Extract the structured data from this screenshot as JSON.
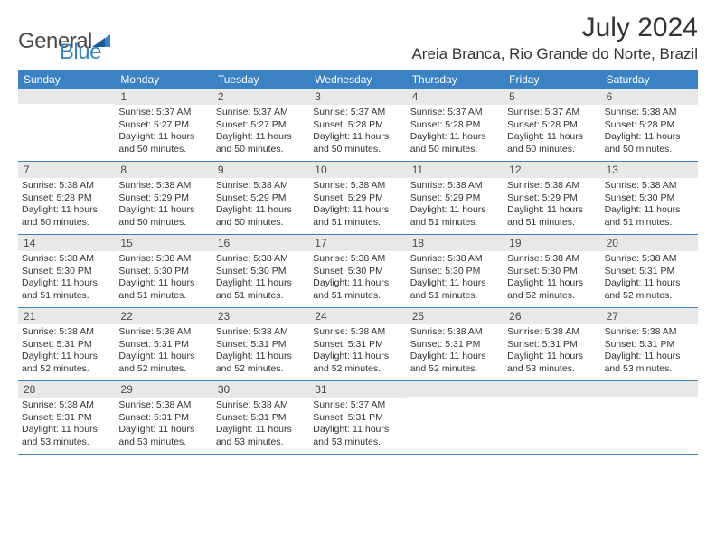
{
  "logo": {
    "word1": "General",
    "word2": "Blue"
  },
  "title": "July 2024",
  "location": "Areia Branca, Rio Grande do Norte, Brazil",
  "day_names": [
    "Sunday",
    "Monday",
    "Tuesday",
    "Wednesday",
    "Thursday",
    "Friday",
    "Saturday"
  ],
  "colors": {
    "header_bg": "#3b82c4",
    "header_text": "#ffffff",
    "num_bg": "#e8e8e8",
    "text": "#333333",
    "logo_gray": "#4a4a4a",
    "logo_blue": "#3b82c4"
  },
  "typography": {
    "title_fontsize": 30,
    "location_fontsize": 17,
    "dayname_fontsize": 12,
    "daynum_fontsize": 12,
    "body_fontsize": 10.5
  },
  "weeks": [
    [
      {
        "num": "",
        "sunrise": "",
        "sunset": "",
        "daylight": ""
      },
      {
        "num": "1",
        "sunrise": "Sunrise: 5:37 AM",
        "sunset": "Sunset: 5:27 PM",
        "daylight": "Daylight: 11 hours and 50 minutes."
      },
      {
        "num": "2",
        "sunrise": "Sunrise: 5:37 AM",
        "sunset": "Sunset: 5:27 PM",
        "daylight": "Daylight: 11 hours and 50 minutes."
      },
      {
        "num": "3",
        "sunrise": "Sunrise: 5:37 AM",
        "sunset": "Sunset: 5:28 PM",
        "daylight": "Daylight: 11 hours and 50 minutes."
      },
      {
        "num": "4",
        "sunrise": "Sunrise: 5:37 AM",
        "sunset": "Sunset: 5:28 PM",
        "daylight": "Daylight: 11 hours and 50 minutes."
      },
      {
        "num": "5",
        "sunrise": "Sunrise: 5:37 AM",
        "sunset": "Sunset: 5:28 PM",
        "daylight": "Daylight: 11 hours and 50 minutes."
      },
      {
        "num": "6",
        "sunrise": "Sunrise: 5:38 AM",
        "sunset": "Sunset: 5:28 PM",
        "daylight": "Daylight: 11 hours and 50 minutes."
      }
    ],
    [
      {
        "num": "7",
        "sunrise": "Sunrise: 5:38 AM",
        "sunset": "Sunset: 5:28 PM",
        "daylight": "Daylight: 11 hours and 50 minutes."
      },
      {
        "num": "8",
        "sunrise": "Sunrise: 5:38 AM",
        "sunset": "Sunset: 5:29 PM",
        "daylight": "Daylight: 11 hours and 50 minutes."
      },
      {
        "num": "9",
        "sunrise": "Sunrise: 5:38 AM",
        "sunset": "Sunset: 5:29 PM",
        "daylight": "Daylight: 11 hours and 50 minutes."
      },
      {
        "num": "10",
        "sunrise": "Sunrise: 5:38 AM",
        "sunset": "Sunset: 5:29 PM",
        "daylight": "Daylight: 11 hours and 51 minutes."
      },
      {
        "num": "11",
        "sunrise": "Sunrise: 5:38 AM",
        "sunset": "Sunset: 5:29 PM",
        "daylight": "Daylight: 11 hours and 51 minutes."
      },
      {
        "num": "12",
        "sunrise": "Sunrise: 5:38 AM",
        "sunset": "Sunset: 5:29 PM",
        "daylight": "Daylight: 11 hours and 51 minutes."
      },
      {
        "num": "13",
        "sunrise": "Sunrise: 5:38 AM",
        "sunset": "Sunset: 5:30 PM",
        "daylight": "Daylight: 11 hours and 51 minutes."
      }
    ],
    [
      {
        "num": "14",
        "sunrise": "Sunrise: 5:38 AM",
        "sunset": "Sunset: 5:30 PM",
        "daylight": "Daylight: 11 hours and 51 minutes."
      },
      {
        "num": "15",
        "sunrise": "Sunrise: 5:38 AM",
        "sunset": "Sunset: 5:30 PM",
        "daylight": "Daylight: 11 hours and 51 minutes."
      },
      {
        "num": "16",
        "sunrise": "Sunrise: 5:38 AM",
        "sunset": "Sunset: 5:30 PM",
        "daylight": "Daylight: 11 hours and 51 minutes."
      },
      {
        "num": "17",
        "sunrise": "Sunrise: 5:38 AM",
        "sunset": "Sunset: 5:30 PM",
        "daylight": "Daylight: 11 hours and 51 minutes."
      },
      {
        "num": "18",
        "sunrise": "Sunrise: 5:38 AM",
        "sunset": "Sunset: 5:30 PM",
        "daylight": "Daylight: 11 hours and 51 minutes."
      },
      {
        "num": "19",
        "sunrise": "Sunrise: 5:38 AM",
        "sunset": "Sunset: 5:30 PM",
        "daylight": "Daylight: 11 hours and 52 minutes."
      },
      {
        "num": "20",
        "sunrise": "Sunrise: 5:38 AM",
        "sunset": "Sunset: 5:31 PM",
        "daylight": "Daylight: 11 hours and 52 minutes."
      }
    ],
    [
      {
        "num": "21",
        "sunrise": "Sunrise: 5:38 AM",
        "sunset": "Sunset: 5:31 PM",
        "daylight": "Daylight: 11 hours and 52 minutes."
      },
      {
        "num": "22",
        "sunrise": "Sunrise: 5:38 AM",
        "sunset": "Sunset: 5:31 PM",
        "daylight": "Daylight: 11 hours and 52 minutes."
      },
      {
        "num": "23",
        "sunrise": "Sunrise: 5:38 AM",
        "sunset": "Sunset: 5:31 PM",
        "daylight": "Daylight: 11 hours and 52 minutes."
      },
      {
        "num": "24",
        "sunrise": "Sunrise: 5:38 AM",
        "sunset": "Sunset: 5:31 PM",
        "daylight": "Daylight: 11 hours and 52 minutes."
      },
      {
        "num": "25",
        "sunrise": "Sunrise: 5:38 AM",
        "sunset": "Sunset: 5:31 PM",
        "daylight": "Daylight: 11 hours and 52 minutes."
      },
      {
        "num": "26",
        "sunrise": "Sunrise: 5:38 AM",
        "sunset": "Sunset: 5:31 PM",
        "daylight": "Daylight: 11 hours and 53 minutes."
      },
      {
        "num": "27",
        "sunrise": "Sunrise: 5:38 AM",
        "sunset": "Sunset: 5:31 PM",
        "daylight": "Daylight: 11 hours and 53 minutes."
      }
    ],
    [
      {
        "num": "28",
        "sunrise": "Sunrise: 5:38 AM",
        "sunset": "Sunset: 5:31 PM",
        "daylight": "Daylight: 11 hours and 53 minutes."
      },
      {
        "num": "29",
        "sunrise": "Sunrise: 5:38 AM",
        "sunset": "Sunset: 5:31 PM",
        "daylight": "Daylight: 11 hours and 53 minutes."
      },
      {
        "num": "30",
        "sunrise": "Sunrise: 5:38 AM",
        "sunset": "Sunset: 5:31 PM",
        "daylight": "Daylight: 11 hours and 53 minutes."
      },
      {
        "num": "31",
        "sunrise": "Sunrise: 5:37 AM",
        "sunset": "Sunset: 5:31 PM",
        "daylight": "Daylight: 11 hours and 53 minutes."
      },
      {
        "num": "",
        "sunrise": "",
        "sunset": "",
        "daylight": ""
      },
      {
        "num": "",
        "sunrise": "",
        "sunset": "",
        "daylight": ""
      },
      {
        "num": "",
        "sunrise": "",
        "sunset": "",
        "daylight": ""
      }
    ]
  ]
}
